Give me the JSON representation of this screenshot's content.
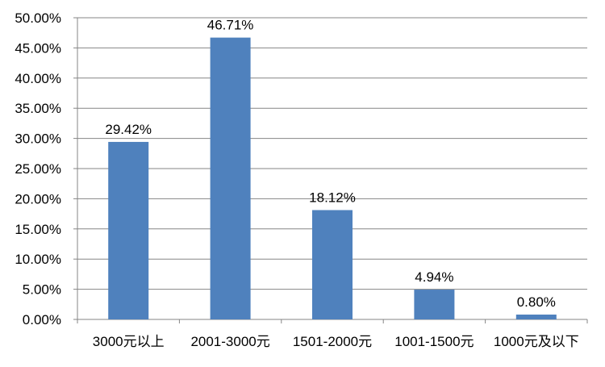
{
  "chart_data": {
    "type": "bar",
    "categories": [
      "3000元以上",
      "2001-3000元",
      "1501-2000元",
      "1001-1500元",
      "1000元及以下"
    ],
    "values": [
      29.42,
      46.71,
      18.12,
      4.94,
      0.8
    ],
    "data_labels": [
      "29.42%",
      "46.71%",
      "18.12%",
      "4.94%",
      "0.80%"
    ],
    "ylim": [
      0,
      50
    ],
    "y_ticks": [
      0,
      5,
      10,
      15,
      20,
      25,
      30,
      35,
      40,
      45,
      50
    ],
    "y_tick_labels": [
      "0.00%",
      "5.00%",
      "10.00%",
      "15.00%",
      "20.00%",
      "25.00%",
      "30.00%",
      "35.00%",
      "40.00%",
      "45.00%",
      "50.00%"
    ],
    "title": "",
    "xlabel": "",
    "ylabel": "",
    "grid": true,
    "legend": "none",
    "colors": {
      "bar": "#4f81bd",
      "grid": "#868686",
      "axis": "#868686"
    }
  }
}
